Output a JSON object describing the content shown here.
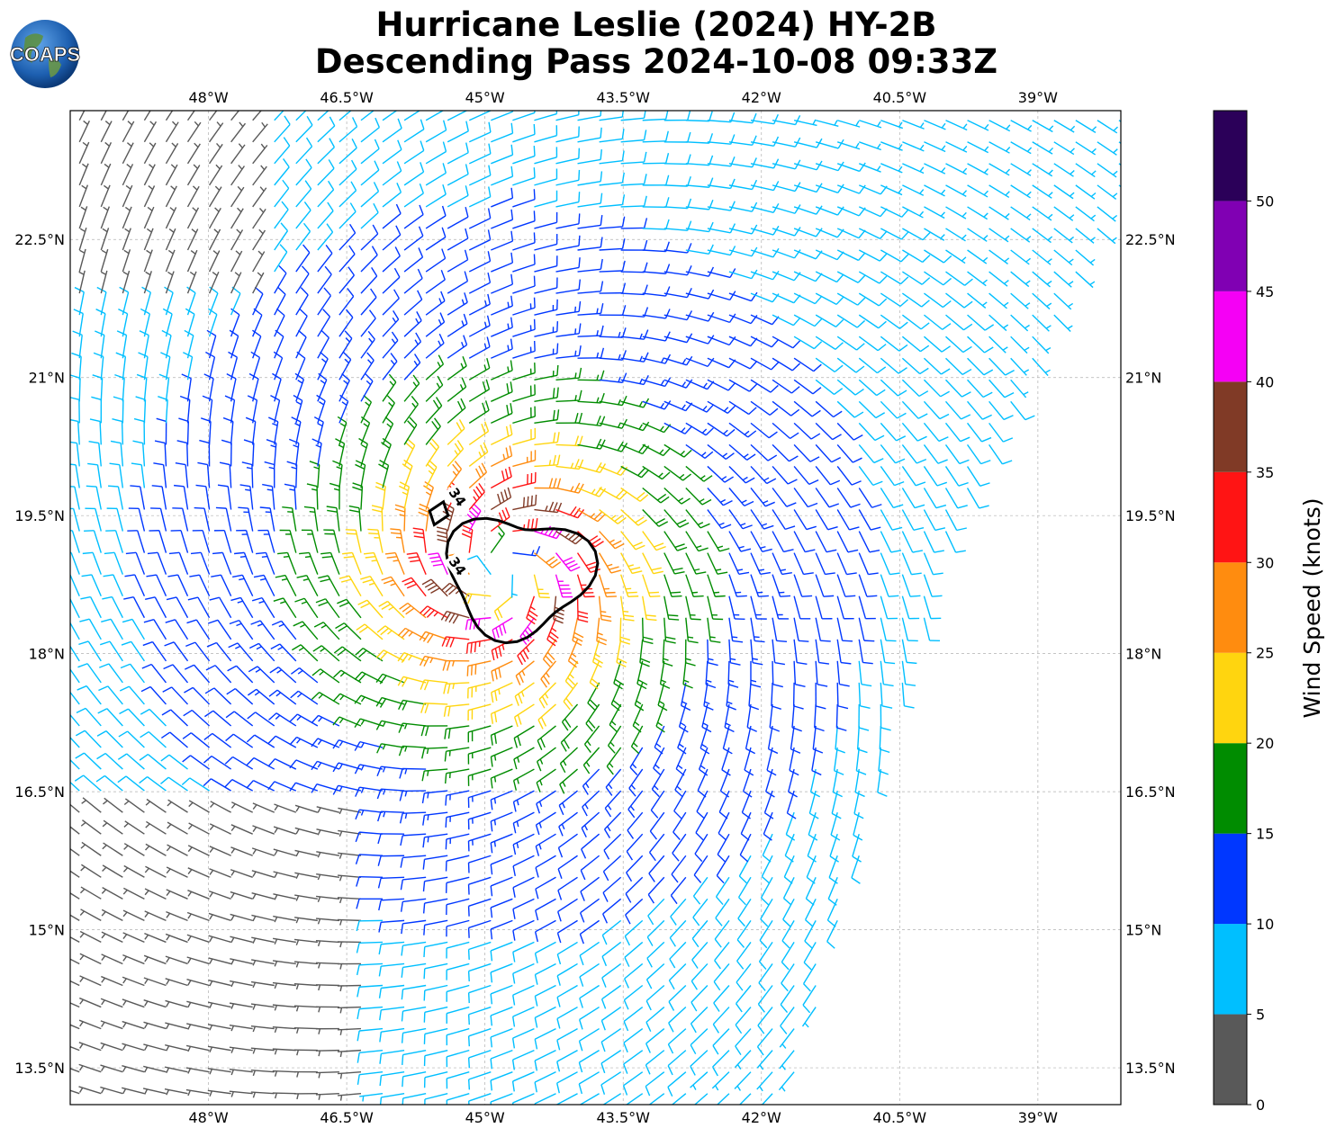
{
  "header": {
    "title_line1": "Hurricane Leslie (2024) HY-2B",
    "title_line2": "Descending Pass 2024-10-08 09:33Z",
    "logo_text": "COAPS"
  },
  "map": {
    "lon_range": [
      -49.5,
      -38.1
    ],
    "lat_range": [
      13.1,
      23.9
    ],
    "lon_ticks": [
      "48°W",
      "46.5°W",
      "45°W",
      "43.5°W",
      "42°W",
      "40.5°W",
      "39°W"
    ],
    "lon_tick_values": [
      -48,
      -46.5,
      -45,
      -43.5,
      -42,
      -40.5,
      -39
    ],
    "lat_ticks": [
      "22.5°N",
      "21°N",
      "19.5°N",
      "18°N",
      "16.5°N",
      "15°N",
      "13.5°N"
    ],
    "lat_tick_values": [
      22.5,
      21,
      19.5,
      18,
      16.5,
      15,
      13.5
    ],
    "grid": true,
    "storm_center": {
      "lon": -44.8,
      "lat": 18.9
    },
    "swath_east_edge": [
      [
        -38.1,
        23.0
      ],
      [
        -39.9,
        19.5
      ],
      [
        -41.7,
        13.1
      ]
    ],
    "contour_label": "34",
    "contour_level_knots": 34
  },
  "colorbar": {
    "label": "Wind Speed (knots)",
    "tick_labels": [
      "0",
      "5",
      "10",
      "15",
      "20",
      "25",
      "30",
      "35",
      "40",
      "45",
      "50"
    ],
    "bins": [
      {
        "min": 0,
        "max": 5,
        "color": "#595959"
      },
      {
        "min": 5,
        "max": 10,
        "color": "#00bfff"
      },
      {
        "min": 10,
        "max": 15,
        "color": "#0037ff"
      },
      {
        "min": 15,
        "max": 20,
        "color": "#008c00"
      },
      {
        "min": 20,
        "max": 25,
        "color": "#ffd50f"
      },
      {
        "min": 25,
        "max": 30,
        "color": "#ff8c0f"
      },
      {
        "min": 30,
        "max": 35,
        "color": "#ff1414"
      },
      {
        "min": 35,
        "max": 40,
        "color": "#803a26"
      },
      {
        "min": 40,
        "max": 45,
        "color": "#f500f5"
      },
      {
        "min": 45,
        "max": 50,
        "color": "#8000b3"
      },
      {
        "min": 50,
        "max": 55,
        "color": "#2b0059"
      }
    ]
  },
  "wind_field": {
    "type": "cyclonic barbs",
    "max_wind_knots": 44,
    "radius_of_max_wind_deg": 0.55,
    "background_wind_knots": 6
  }
}
